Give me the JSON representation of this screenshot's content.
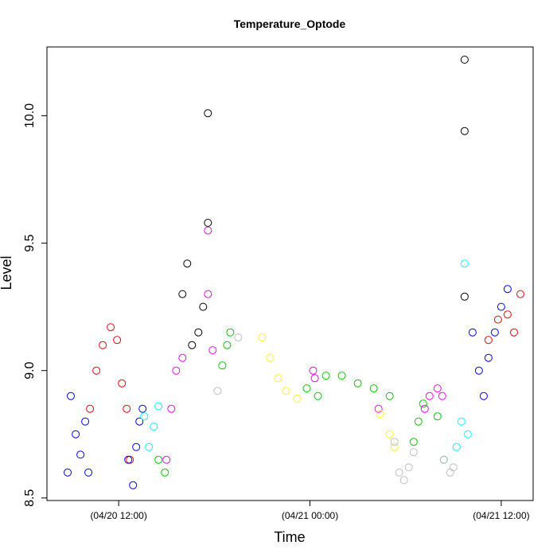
{
  "chart_data": {
    "type": "scatter",
    "title": "Temperature_Optode",
    "xlabel": "Time",
    "ylabel": "Level",
    "x_unit": "hours since 04/20 00:00",
    "xlim": [
      7.5,
      38.0
    ],
    "ylim": [
      8.49,
      10.27
    ],
    "x_ticks": [
      {
        "value": 12,
        "label": "(04/20 12:00)"
      },
      {
        "value": 24,
        "label": "(04/21 00:00)"
      },
      {
        "value": 36,
        "label": "(04/21 12:00)"
      }
    ],
    "y_ticks": [
      {
        "value": 8.5,
        "label": "8.5"
      },
      {
        "value": 9.0,
        "label": "9.0"
      },
      {
        "value": 9.5,
        "label": "9.5"
      },
      {
        "value": 10.0,
        "label": "10.0"
      }
    ],
    "grid": false,
    "legend": "none",
    "marker": "open-circle",
    "series": [
      {
        "color": "#0000ff",
        "points": [
          [
            8.8,
            8.6
          ],
          [
            9.0,
            8.9
          ],
          [
            9.3,
            8.75
          ],
          [
            9.6,
            8.67
          ],
          [
            9.9,
            8.8
          ],
          [
            10.1,
            8.6
          ]
        ]
      },
      {
        "color": "#ff0000",
        "points": [
          [
            10.2,
            8.85
          ],
          [
            10.6,
            9.0
          ],
          [
            11.0,
            9.1
          ],
          [
            11.5,
            9.17
          ],
          [
            11.9,
            9.12
          ],
          [
            12.2,
            8.95
          ],
          [
            12.5,
            8.85
          ],
          [
            12.7,
            8.65
          ]
        ]
      },
      {
        "color": "#0000ff",
        "points": [
          [
            12.6,
            8.65
          ],
          [
            12.9,
            8.55
          ],
          [
            13.1,
            8.7
          ],
          [
            13.3,
            8.8
          ],
          [
            13.5,
            8.85
          ]
        ]
      },
      {
        "color": "#00ffff",
        "points": [
          [
            13.6,
            8.82
          ],
          [
            13.9,
            8.7
          ],
          [
            14.2,
            8.78
          ],
          [
            14.5,
            8.86
          ]
        ]
      },
      {
        "color": "#00cc00",
        "points": [
          [
            14.5,
            8.65
          ],
          [
            14.9,
            8.6
          ]
        ]
      },
      {
        "color": "#ff00ff",
        "points": [
          [
            15.0,
            8.65
          ],
          [
            15.3,
            8.85
          ],
          [
            15.6,
            9.0
          ],
          [
            16.0,
            9.05
          ]
        ]
      },
      {
        "color": "#000000",
        "points": [
          [
            16.0,
            9.3
          ],
          [
            16.3,
            9.42
          ],
          [
            16.6,
            9.1
          ],
          [
            17.0,
            9.15
          ],
          [
            17.3,
            9.25
          ],
          [
            17.6,
            10.01
          ],
          [
            17.6,
            9.58
          ]
        ]
      },
      {
        "color": "#ff00ff",
        "points": [
          [
            17.6,
            9.55
          ],
          [
            17.6,
            9.3
          ],
          [
            17.9,
            9.08
          ]
        ]
      },
      {
        "color": "#bebebe",
        "points": [
          [
            18.2,
            8.92
          ],
          [
            19.5,
            9.13
          ]
        ]
      },
      {
        "color": "#00cc00",
        "points": [
          [
            18.5,
            9.02
          ],
          [
            18.8,
            9.1
          ],
          [
            19.0,
            9.15
          ]
        ]
      },
      {
        "color": "#ffff00",
        "points": [
          [
            21.0,
            9.13
          ],
          [
            21.5,
            9.05
          ],
          [
            22.0,
            8.97
          ],
          [
            22.5,
            8.92
          ],
          [
            23.2,
            8.89
          ]
        ]
      },
      {
        "color": "#00cc00",
        "points": [
          [
            23.8,
            8.93
          ],
          [
            24.5,
            8.9
          ],
          [
            25.0,
            8.98
          ],
          [
            26.0,
            8.98
          ],
          [
            27.0,
            8.95
          ],
          [
            28.0,
            8.93
          ],
          [
            29.0,
            8.9
          ]
        ]
      },
      {
        "color": "#ff00ff",
        "points": [
          [
            24.2,
            9.0
          ],
          [
            24.3,
            8.97
          ],
          [
            28.3,
            8.85
          ]
        ]
      },
      {
        "color": "#ffff00",
        "points": [
          [
            28.4,
            8.83
          ],
          [
            29.0,
            8.75
          ],
          [
            29.3,
            8.7
          ]
        ]
      },
      {
        "color": "#bebebe",
        "points": [
          [
            29.3,
            8.72
          ],
          [
            29.6,
            8.6
          ],
          [
            29.9,
            8.57
          ],
          [
            30.2,
            8.62
          ],
          [
            30.5,
            8.68
          ]
        ]
      },
      {
        "color": "#00cc00",
        "points": [
          [
            30.5,
            8.72
          ],
          [
            30.8,
            8.8
          ],
          [
            31.1,
            8.87
          ],
          [
            32.0,
            8.82
          ],
          [
            32.4,
            8.65
          ]
        ]
      },
      {
        "color": "#ff00ff",
        "points": [
          [
            31.2,
            8.85
          ],
          [
            31.5,
            8.9
          ],
          [
            32.0,
            8.93
          ],
          [
            32.3,
            8.9
          ]
        ]
      },
      {
        "color": "#bebebe",
        "points": [
          [
            32.4,
            8.65
          ],
          [
            32.8,
            8.6
          ],
          [
            33.0,
            8.62
          ]
        ]
      },
      {
        "color": "#00ffff",
        "points": [
          [
            33.2,
            8.7
          ],
          [
            33.5,
            8.8
          ],
          [
            33.7,
            9.42
          ],
          [
            33.9,
            8.75
          ]
        ]
      },
      {
        "color": "#000000",
        "points": [
          [
            33.7,
            10.22
          ],
          [
            33.7,
            9.94
          ],
          [
            33.7,
            9.29
          ]
        ]
      },
      {
        "color": "#0000ff",
        "points": [
          [
            34.2,
            9.15
          ],
          [
            34.6,
            9.0
          ],
          [
            34.9,
            8.9
          ],
          [
            35.2,
            9.05
          ],
          [
            35.6,
            9.15
          ],
          [
            36.0,
            9.25
          ],
          [
            36.4,
            9.32
          ]
        ]
      },
      {
        "color": "#ff0000",
        "points": [
          [
            35.2,
            9.12
          ],
          [
            35.8,
            9.2
          ],
          [
            36.4,
            9.22
          ],
          [
            36.8,
            9.15
          ],
          [
            37.2,
            9.3
          ]
        ]
      }
    ]
  }
}
